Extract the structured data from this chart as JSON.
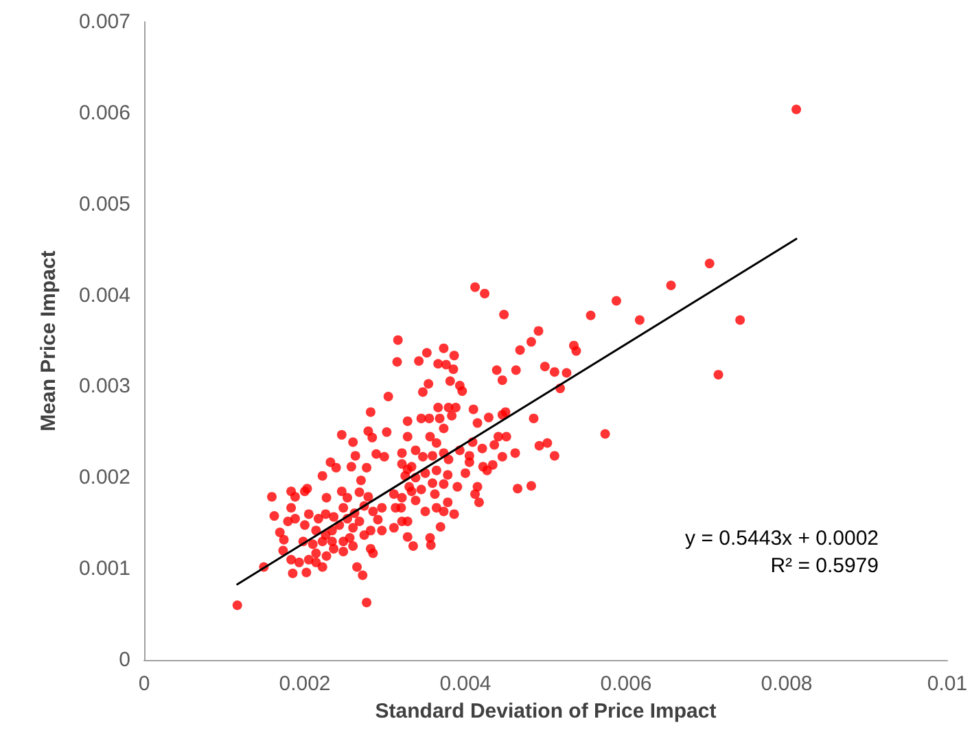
{
  "chart_data": {
    "type": "scatter",
    "xlabel": "Standard Deviation of Price Impact",
    "ylabel": "Mean Price Impact",
    "xlim": [
      0,
      0.01
    ],
    "xticks": [
      0,
      0.002,
      0.004,
      0.006,
      0.008,
      0.01
    ],
    "ylim": [
      0,
      0.007
    ],
    "yticks": [
      0,
      0.001,
      0.002,
      0.003,
      0.004,
      0.005,
      0.006,
      0.007
    ],
    "grid": false,
    "marker": "circle",
    "annotations": [
      "y = 0.5443x + 0.0002",
      "R² = 0.5979"
    ],
    "series": [
      {
        "color": "#ff0000",
        "x": [
          0.00812,
          0.00704,
          0.00656,
          0.00588,
          0.00556,
          0.00617,
          0.00742,
          0.00715,
          0.00574,
          0.00538,
          0.00412,
          0.00424,
          0.00448,
          0.00491,
          0.00482,
          0.00468,
          0.00535,
          0.00373,
          0.00386,
          0.00342,
          0.00352,
          0.00366,
          0.00376,
          0.00385,
          0.00439,
          0.00463,
          0.00446,
          0.00499,
          0.00511,
          0.00526,
          0.00518,
          0.00354,
          0.00381,
          0.00393,
          0.00396,
          0.00347,
          0.00485,
          0.00462,
          0.00492,
          0.00502,
          0.00511,
          0.00465,
          0.00482,
          0.0041,
          0.00415,
          0.00429,
          0.00446,
          0.0045,
          0.00441,
          0.00451,
          0.00436,
          0.00446,
          0.00421,
          0.00409,
          0.00405,
          0.00422,
          0.00427,
          0.00434,
          0.00415,
          0.00412,
          0.00417,
          0.004,
          0.0039,
          0.00378,
          0.00373,
          0.00378,
          0.00386,
          0.00369,
          0.00357,
          0.00356,
          0.00335,
          0.00328,
          0.00328,
          0.00366,
          0.00379,
          0.00388,
          0.00368,
          0.00355,
          0.00345,
          0.00328,
          0.00328,
          0.00356,
          0.00373,
          0.00383,
          0.00338,
          0.00364,
          0.00373,
          0.00347,
          0.00359,
          0.00379,
          0.00393,
          0.00405,
          0.00321,
          0.00333,
          0.0035,
          0.00364,
          0.00325,
          0.00338,
          0.00359,
          0.0033,
          0.00345,
          0.00362,
          0.00321,
          0.00338,
          0.00364,
          0.0032,
          0.0035,
          0.00373,
          0.00316,
          0.00116,
          0.00277,
          0.00149,
          0.00159,
          0.00162,
          0.00169,
          0.00174,
          0.00173,
          0.00183,
          0.00183,
          0.00188,
          0.002,
          0.00203,
          0.00222,
          0.00227,
          0.00246,
          0.00232,
          0.00239,
          0.00246,
          0.0026,
          0.00263,
          0.00258,
          0.00279,
          0.00284,
          0.00302,
          0.00289,
          0.00299,
          0.00277,
          0.0027,
          0.00268,
          0.00279,
          0.00274,
          0.00262,
          0.00253,
          0.00248,
          0.00236,
          0.00226,
          0.00217,
          0.00205,
          0.00188,
          0.00179,
          0.002,
          0.00214,
          0.00226,
          0.00234,
          0.00243,
          0.00253,
          0.0026,
          0.00268,
          0.00274,
          0.00282,
          0.00291,
          0.00296,
          0.00311,
          0.00321,
          0.00313,
          0.00296,
          0.00285,
          0.00198,
          0.0021,
          0.00222,
          0.00234,
          0.00248,
          0.00256,
          0.00214,
          0.00227,
          0.00236,
          0.00248,
          0.0026,
          0.00282,
          0.00285,
          0.00183,
          0.00193,
          0.00205,
          0.00214,
          0.00185,
          0.00202,
          0.00222,
          0.00265,
          0.00272,
          0.00321,
          0.00328,
          0.00311,
          0.00333,
          0.00315,
          0.00304,
          0.00282
        ],
        "values": [
          0.00604,
          0.00435,
          0.00411,
          0.00394,
          0.00378,
          0.00373,
          0.00373,
          0.00313,
          0.00248,
          0.00339,
          0.00409,
          0.00402,
          0.00379,
          0.00361,
          0.00349,
          0.0034,
          0.00345,
          0.00342,
          0.00334,
          0.00328,
          0.00337,
          0.00325,
          0.00324,
          0.00319,
          0.00318,
          0.00318,
          0.00307,
          0.00322,
          0.00316,
          0.00315,
          0.00298,
          0.00303,
          0.00306,
          0.00301,
          0.00295,
          0.00294,
          0.00265,
          0.00227,
          0.00235,
          0.00238,
          0.00224,
          0.00188,
          0.00191,
          0.00275,
          0.0026,
          0.00266,
          0.00269,
          0.00272,
          0.00245,
          0.00245,
          0.00236,
          0.00223,
          0.00232,
          0.00239,
          0.00224,
          0.00212,
          0.00208,
          0.00214,
          0.0019,
          0.00182,
          0.00173,
          0.00205,
          0.0019,
          0.00203,
          0.00193,
          0.00173,
          0.0016,
          0.00146,
          0.00126,
          0.00134,
          0.00125,
          0.00152,
          0.00135,
          0.00277,
          0.00277,
          0.00277,
          0.00265,
          0.00265,
          0.00265,
          0.00262,
          0.00245,
          0.00245,
          0.00254,
          0.00268,
          0.0023,
          0.00238,
          0.00227,
          0.00223,
          0.00224,
          0.0022,
          0.0023,
          0.00217,
          0.00215,
          0.00212,
          0.00205,
          0.00208,
          0.00202,
          0.002,
          0.00194,
          0.0019,
          0.00187,
          0.00182,
          0.00178,
          0.00175,
          0.00167,
          0.00167,
          0.00163,
          0.00163,
          0.00351,
          0.0006,
          0.00063,
          0.00102,
          0.00179,
          0.00158,
          0.0014,
          0.00132,
          0.0012,
          0.00185,
          0.00167,
          0.00179,
          0.00185,
          0.00188,
          0.00202,
          0.00178,
          0.00185,
          0.00217,
          0.00211,
          0.00247,
          0.00239,
          0.00224,
          0.00212,
          0.00251,
          0.00244,
          0.0025,
          0.00226,
          0.00223,
          0.00211,
          0.00197,
          0.00184,
          0.00179,
          0.00169,
          0.00161,
          0.00178,
          0.00167,
          0.00157,
          0.0016,
          0.00155,
          0.0016,
          0.00155,
          0.00152,
          0.00148,
          0.00142,
          0.00137,
          0.00142,
          0.00148,
          0.00155,
          0.00145,
          0.00152,
          0.00137,
          0.00142,
          0.00154,
          0.00142,
          0.00145,
          0.00152,
          0.00167,
          0.00167,
          0.00163,
          0.0013,
          0.00127,
          0.0013,
          0.0013,
          0.0013,
          0.00134,
          0.00117,
          0.00114,
          0.00122,
          0.00119,
          0.00125,
          0.00122,
          0.00117,
          0.0011,
          0.00107,
          0.0011,
          0.00107,
          0.00095,
          0.00096,
          0.00102,
          0.00102,
          0.00093,
          0.00227,
          0.00209,
          0.00182,
          0.00185,
          0.00327,
          0.00289,
          0.00272
        ]
      },
      {
        "type": "line",
        "color": "#000000",
        "marker": "none",
        "line_style": "solid",
        "x": [
          0.00116,
          0.00812
        ],
        "values": [
          0.00083,
          0.00462
        ]
      }
    ]
  }
}
